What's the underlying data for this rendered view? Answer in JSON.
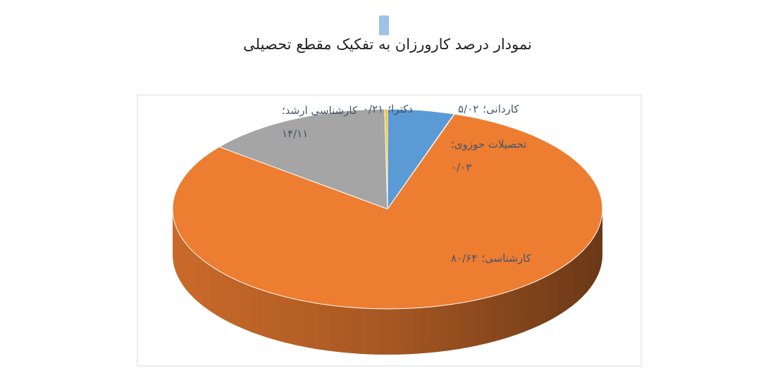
{
  "chart_data": {
    "type": "pie3d",
    "title": "نمودار درصد کارورزان به تفکیک مقطع تحصیلی",
    "categories": [
      "کاردانی",
      "تحصیلات حوزوی",
      "کارشناسی",
      "کارشناسی ارشد",
      "دکترا"
    ],
    "values": [
      5.02,
      0.03,
      80.64,
      14.11,
      0.21
    ],
    "value_labels": [
      "۵/۰۲",
      "۰/۰۳",
      "۸۰/۶۴",
      "۱۴/۱۱",
      "۰/۲۱"
    ],
    "separator": "؛",
    "colors": [
      "#5b9bd5",
      "#4472c4",
      "#ed7d31",
      "#a5a5a5",
      "#ffc000"
    ]
  }
}
